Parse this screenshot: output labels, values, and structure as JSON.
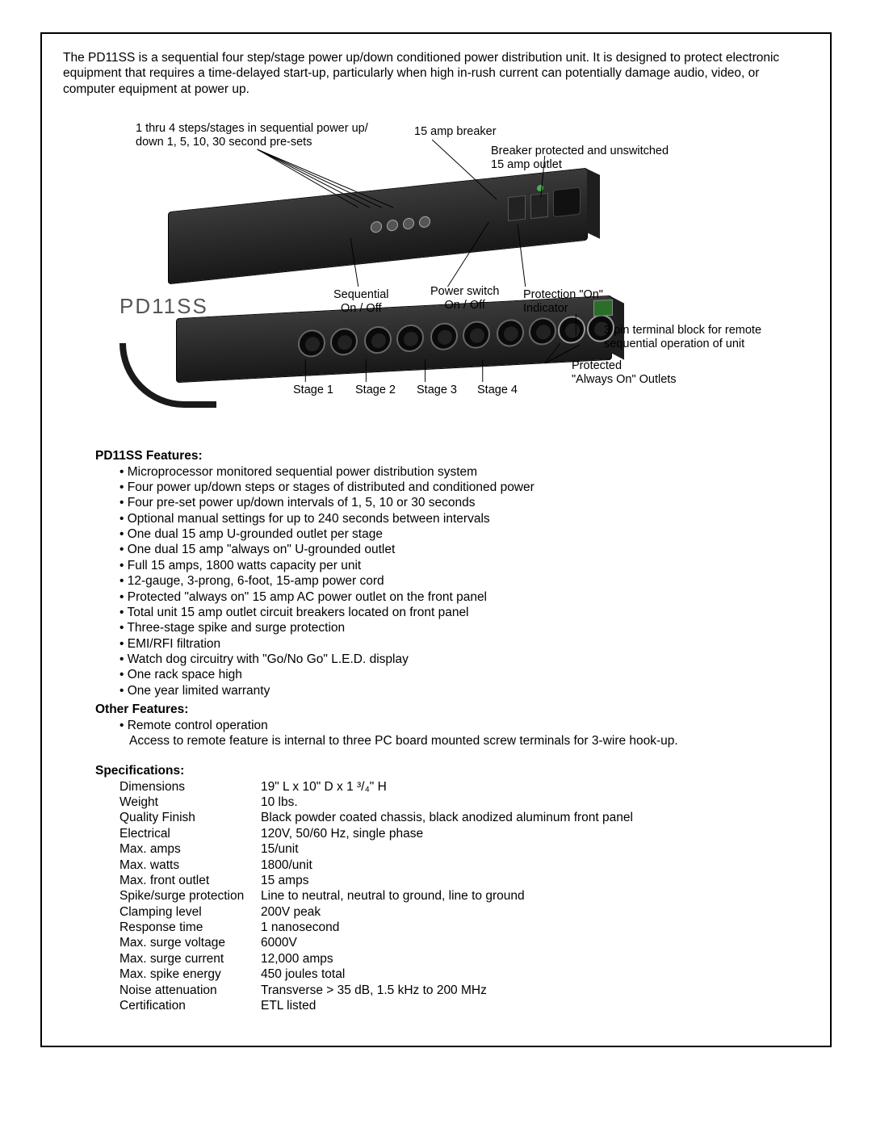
{
  "intro": "The PD11SS is a sequential four step/stage power up/down conditioned power distribution unit. It is designed to protect electronic equipment that requires a time-delayed start-up, particularly when high in-rush current can potentially damage audio, video, or computer equipment at power up.",
  "product_label": "PD11SS",
  "callouts": {
    "steps": "1 thru 4 steps/stages in sequential power up/\ndown 1, 5, 10, 30 second pre-sets",
    "breaker": "15 amp breaker",
    "breaker_outlet": "Breaker protected and unswitched\n15 amp outlet",
    "sequential": "Sequential\nOn / Off",
    "power_switch": "Power switch\nOn / Off",
    "protection_on": "Protection \"On\"\nIndicator",
    "terminal_block": "3 pin terminal block for remote\nsequential operation of unit",
    "always_on": "Protected\n\"Always On\" Outlets",
    "stage1": "Stage 1",
    "stage2": "Stage 2",
    "stage3": "Stage 3",
    "stage4": "Stage 4"
  },
  "features_title": "PD11SS Features:",
  "features": [
    "Microprocessor monitored sequential power distribution system",
    "Four power up/down steps or stages of distributed and conditioned power",
    "Four pre-set power up/down intervals of 1, 5, 10 or 30 seconds",
    "Optional manual settings for up to 240 seconds between intervals",
    "One dual 15 amp U-grounded outlet per stage",
    "One dual 15 amp \"always on\" U-grounded outlet",
    "Full 15 amps, 1800 watts capacity per unit",
    "12-gauge, 3-prong, 6-foot, 15-amp power cord",
    "Protected \"always on\" 15 amp AC power outlet on the front panel",
    "Total unit 15 amp outlet circuit breakers located on front panel",
    "Three-stage spike and surge protection",
    "EMI/RFI filtration",
    "Watch dog circuitry with \"Go/No Go\" L.E.D. display",
    "One rack space high",
    "One year limited warranty"
  ],
  "other_title": "Other Features:",
  "other_features": [
    "Remote control operation"
  ],
  "other_note": "Access to remote feature is internal to three PC board mounted screw terminals for 3-wire hook-up.",
  "specs_title": "Specifications:",
  "specs": [
    {
      "label": "Dimensions",
      "value": "19\" L x 10\" D x 1 ³/₄\" H"
    },
    {
      "label": "Weight",
      "value": "10 lbs."
    },
    {
      "label": "Quality Finish",
      "value": "Black powder coated chassis, black anodized aluminum front panel"
    },
    {
      "label": "Electrical",
      "value": "120V, 50/60 Hz, single phase"
    },
    {
      "label": "Max. amps",
      "value": "15/unit"
    },
    {
      "label": "Max. watts",
      "value": "1800/unit"
    },
    {
      "label": "Max. front outlet",
      "value": "15 amps"
    },
    {
      "label": "Spike/surge protection",
      "value": "Line to neutral, neutral to ground, line to ground"
    },
    {
      "label": "Clamping level",
      "value": "200V peak"
    },
    {
      "label": "Response time",
      "value": "1 nanosecond"
    },
    {
      "label": "Max. surge voltage",
      "value": "6000V"
    },
    {
      "label": "Max. surge current",
      "value": "12,000 amps"
    },
    {
      "label": "Max. spike energy",
      "value": "450 joules total"
    },
    {
      "label": "Noise attenuation",
      "value": "Transverse > 35 dB, 1.5 kHz to 200 MHz"
    },
    {
      "label": "Certification",
      "value": "ETL listed"
    }
  ],
  "colors": {
    "border": "#000000",
    "text": "#000000",
    "product_label": "#555555",
    "unit_dark": "#181818",
    "unit_light": "#3a3a3a"
  }
}
